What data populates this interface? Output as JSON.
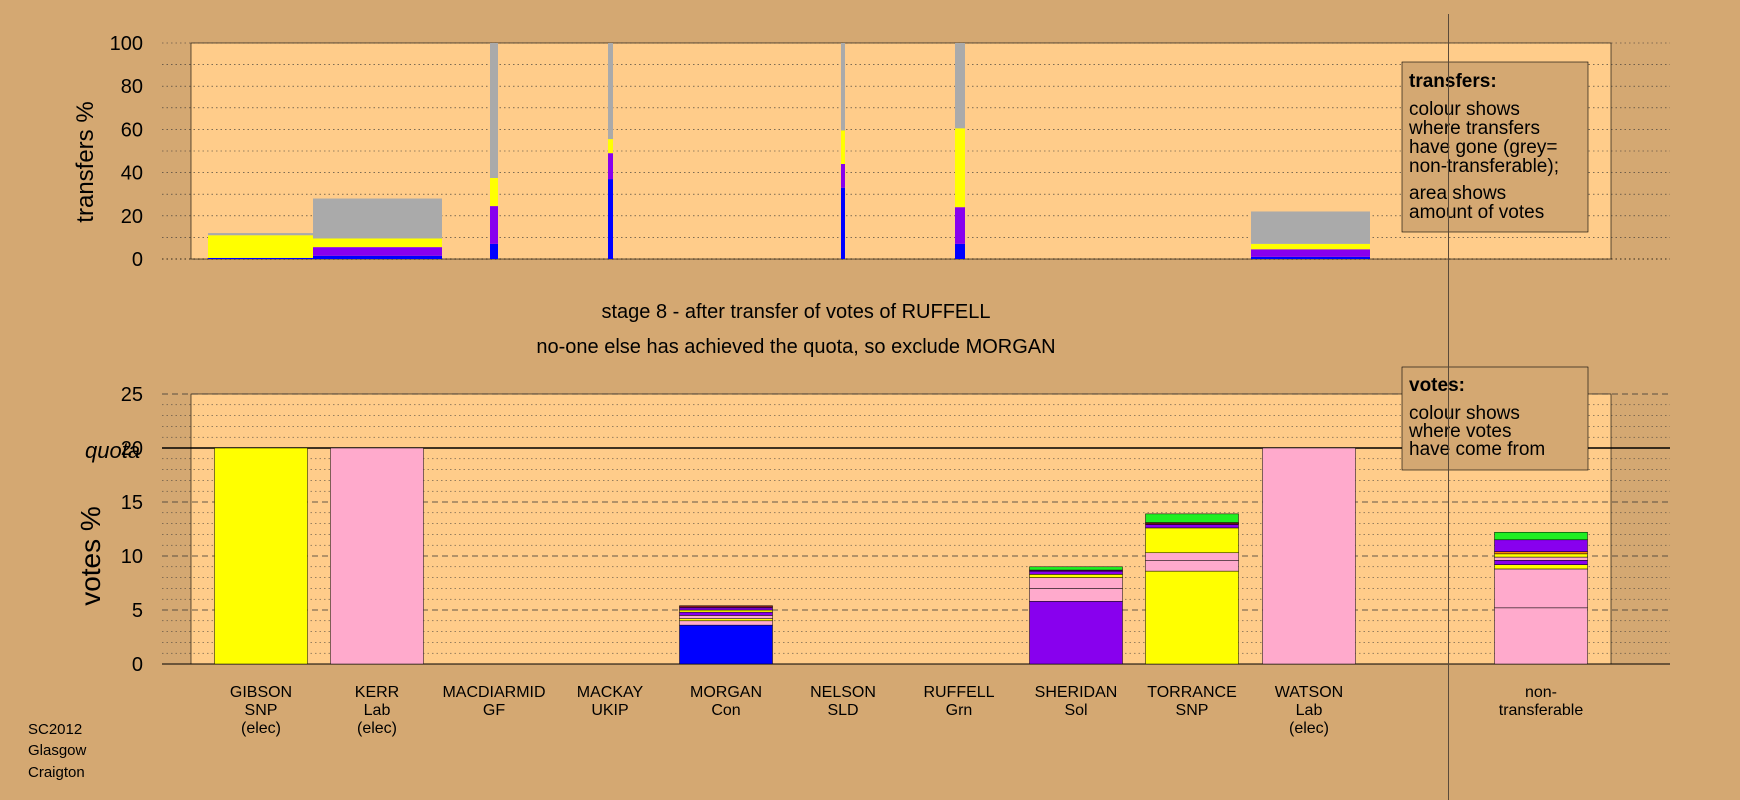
{
  "colors": {
    "background": "#d4a872",
    "plot_bg": "#ffcc8a",
    "SNP": "#ffff00",
    "Lab": "#ffaacc",
    "Sol": "#8800ee",
    "Con": "#0000ff",
    "Grn": "#22ee22",
    "UKIP": "#660077",
    "GF": "#ff3333",
    "SLD": "#ff8800",
    "nontransferable": "#aaaaaa"
  },
  "header": {
    "title": "stage 8 - after transfer of votes of RUFFELL",
    "subtitle": "no-one else has achieved the quota, so exclude MORGAN"
  },
  "footer": {
    "line1": "SC2012",
    "line2": "Glasgow",
    "line3": "Craigton"
  },
  "legend_transfers": {
    "title": "transfers:",
    "lines": [
      "colour shows",
      "where transfers",
      "have gone (grey=",
      "non-transferable);"
    ],
    "lines2": [
      "area shows",
      "amount of votes"
    ]
  },
  "legend_votes": {
    "title": "votes:",
    "lines": [
      "colour shows",
      "where votes",
      "have come from"
    ]
  },
  "chart_data": [
    {
      "type": "bar",
      "ylabel": "transfers %",
      "ylim": [
        0,
        100
      ],
      "yticks": [
        0,
        20,
        40,
        60,
        80,
        100
      ],
      "bars": [
        {
          "candidate": "GIBSON",
          "segments": [
            {
              "party": "Con",
              "value": 0.5
            },
            {
              "party": "SNP",
              "value": 10.5
            },
            {
              "party": "nontransferable",
              "value": 1.0
            }
          ]
        },
        {
          "candidate": "KERR",
          "segments": [
            {
              "party": "Con",
              "value": 1.5
            },
            {
              "party": "Sol",
              "value": 4.0
            },
            {
              "party": "SNP",
              "value": 4.0
            },
            {
              "party": "nontransferable",
              "value": 18.5
            }
          ]
        },
        {
          "candidate": "MACDIARMID",
          "segments": [
            {
              "party": "Con",
              "value": 7.0
            },
            {
              "party": "Sol",
              "value": 17.5
            },
            {
              "party": "SNP",
              "value": 13.0
            },
            {
              "party": "nontransferable",
              "value": 62.5
            }
          ]
        },
        {
          "candidate": "MACKAY",
          "segments": [
            {
              "party": "Con",
              "value": 37.0
            },
            {
              "party": "Sol",
              "value": 12.0
            },
            {
              "party": "SNP",
              "value": 6.5
            },
            {
              "party": "nontransferable",
              "value": 44.5
            }
          ]
        },
        {
          "candidate": "NELSON",
          "segments": [
            {
              "party": "Con",
              "value": 33.0
            },
            {
              "party": "Sol",
              "value": 11.0
            },
            {
              "party": "SNP",
              "value": 15.5
            },
            {
              "party": "nontransferable",
              "value": 40.5
            }
          ]
        },
        {
          "candidate": "RUFFELL",
          "segments": [
            {
              "party": "Con",
              "value": 7.0
            },
            {
              "party": "Sol",
              "value": 17.0
            },
            {
              "party": "SNP",
              "value": 36.5
            },
            {
              "party": "nontransferable",
              "value": 39.5
            }
          ]
        },
        {
          "candidate": "WATSON",
          "segments": [
            {
              "party": "Con",
              "value": 1.0
            },
            {
              "party": "Sol",
              "value": 3.5
            },
            {
              "party": "SNP",
              "value": 2.5
            },
            {
              "party": "nontransferable",
              "value": 15.0
            }
          ]
        }
      ]
    },
    {
      "type": "bar",
      "ylabel": "votes %",
      "ylim": [
        0,
        25
      ],
      "yticks": [
        0,
        5,
        10,
        15,
        20,
        25
      ],
      "quota": 20,
      "quota_label": "quota",
      "candidates": [
        {
          "name": "GIBSON",
          "party": "SNP",
          "status": "(elec)",
          "segments": [
            {
              "party": "SNP",
              "value": 20
            }
          ]
        },
        {
          "name": "KERR",
          "party": "Lab",
          "status": "(elec)",
          "segments": [
            {
              "party": "Lab",
              "value": 20
            }
          ]
        },
        {
          "name": "MACDIARMID",
          "party": "GF",
          "status": "",
          "segments": []
        },
        {
          "name": "MACKAY",
          "party": "UKIP",
          "status": "",
          "segments": []
        },
        {
          "name": "MORGAN",
          "party": "Con",
          "status": "",
          "segments": [
            {
              "party": "Con",
              "value": 3.6
            },
            {
              "party": "Lab",
              "value": 0.4
            },
            {
              "party": "SNP",
              "value": 0.2
            },
            {
              "party": "Lab",
              "value": 0.3
            },
            {
              "party": "Sol",
              "value": 0.3
            },
            {
              "party": "SNP",
              "value": 0.2
            },
            {
              "party": "Sol",
              "value": 0.2
            },
            {
              "party": "UKIP",
              "value": 0.1
            },
            {
              "party": "GF",
              "value": 0.1
            }
          ]
        },
        {
          "name": "NELSON",
          "party": "SLD",
          "status": "",
          "segments": []
        },
        {
          "name": "RUFFELL",
          "party": "Grn",
          "status": "",
          "segments": []
        },
        {
          "name": "SHERIDAN",
          "party": "Sol",
          "status": "",
          "segments": [
            {
              "party": "Sol",
              "value": 5.8
            },
            {
              "party": "Lab",
              "value": 1.2
            },
            {
              "party": "Lab",
              "value": 1.0
            },
            {
              "party": "SNP",
              "value": 0.3
            },
            {
              "party": "Sol",
              "value": 0.3
            },
            {
              "party": "UKIP",
              "value": 0.1
            },
            {
              "party": "Grn",
              "value": 0.3
            }
          ]
        },
        {
          "name": "TORRANCE",
          "party": "SNP",
          "status": "",
          "segments": [
            {
              "party": "SNP",
              "value": 8.6
            },
            {
              "party": "Lab",
              "value": 1.0
            },
            {
              "party": "Lab",
              "value": 0.7
            },
            {
              "party": "SNP",
              "value": 2.3
            },
            {
              "party": "Sol",
              "value": 0.3
            },
            {
              "party": "UKIP",
              "value": 0.1
            },
            {
              "party": "GF",
              "value": 0.1
            },
            {
              "party": "Grn",
              "value": 0.8
            }
          ]
        },
        {
          "name": "WATSON",
          "party": "Lab",
          "status": "(elec)",
          "segments": [
            {
              "party": "Lab",
              "value": 20
            }
          ]
        }
      ],
      "nontransferable": {
        "label": "non-transferable",
        "segments": [
          {
            "party": "Lab",
            "value": 5.2
          },
          {
            "party": "Lab",
            "value": 3.6
          },
          {
            "party": "SNP",
            "value": 0.4
          },
          {
            "party": "Sol",
            "value": 0.4
          },
          {
            "party": "Lab",
            "value": 0.3
          },
          {
            "party": "SNP",
            "value": 0.3
          },
          {
            "party": "SLD",
            "value": 0.2
          },
          {
            "party": "Sol",
            "value": 1.1
          },
          {
            "party": "Grn",
            "value": 0.7
          }
        ]
      }
    }
  ]
}
